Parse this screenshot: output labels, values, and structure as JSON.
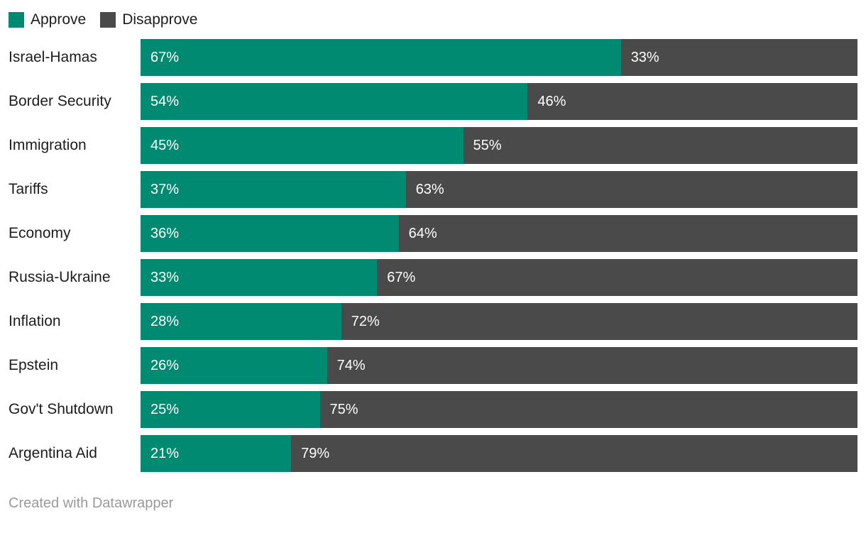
{
  "legend": {
    "items": [
      {
        "label": "Approve",
        "color": "#008a72"
      },
      {
        "label": "Disapprove",
        "color": "#4a4a4a"
      }
    ]
  },
  "chart_data": {
    "type": "bar",
    "orientation": "horizontal",
    "stacked": true,
    "categories": [
      "Israel-Hamas",
      "Border Security",
      "Immigration",
      "Tariffs",
      "Economy",
      "Russia-Ukraine",
      "Inflation",
      "Epstein",
      "Gov't Shutdown",
      "Argentina Aid"
    ],
    "series": [
      {
        "name": "Approve",
        "color": "#008a72",
        "values": [
          67,
          54,
          45,
          37,
          36,
          33,
          28,
          26,
          25,
          21
        ]
      },
      {
        "name": "Disapprove",
        "color": "#4a4a4a",
        "values": [
          33,
          46,
          55,
          63,
          64,
          67,
          72,
          74,
          75,
          79
        ]
      }
    ],
    "value_suffix": "%",
    "xlim": [
      0,
      100
    ],
    "grid": false,
    "legend_position": "top-left",
    "title": "",
    "xlabel": "",
    "ylabel": ""
  },
  "footer": {
    "credit": "Created with Datawrapper"
  }
}
